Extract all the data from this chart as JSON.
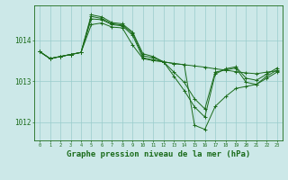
{
  "background_color": "#cce8e8",
  "grid_color": "#99cccc",
  "line_color": "#1a6b1a",
  "marker_color": "#1a6b1a",
  "xlabel": "Graphe pression niveau de la mer (hPa)",
  "xlabel_fontsize": 6.5,
  "ylim": [
    1011.55,
    1014.85
  ],
  "xlim": [
    -0.5,
    23.5
  ],
  "yticks": [
    1012,
    1013,
    1014
  ],
  "xticks": [
    0,
    1,
    2,
    3,
    4,
    5,
    6,
    7,
    8,
    9,
    10,
    11,
    12,
    13,
    14,
    15,
    16,
    17,
    18,
    19,
    20,
    21,
    22,
    23
  ],
  "series": [
    [
      1013.72,
      1013.55,
      1013.6,
      1013.65,
      1013.7,
      1014.38,
      1014.42,
      1014.32,
      1014.3,
      1013.88,
      1013.55,
      1013.5,
      1013.47,
      1013.43,
      1013.4,
      1013.37,
      1013.34,
      1013.3,
      1013.27,
      1013.23,
      1013.2,
      1013.18,
      1013.22,
      1013.25
    ],
    [
      1013.72,
      1013.55,
      1013.6,
      1013.65,
      1013.7,
      1014.52,
      1014.5,
      1014.38,
      1014.35,
      1014.12,
      1013.57,
      1013.52,
      1013.47,
      1013.43,
      1013.4,
      1011.92,
      1011.82,
      1012.38,
      1012.62,
      1012.82,
      1012.87,
      1012.92,
      1013.07,
      1013.22
    ],
    [
      1013.72,
      1013.55,
      1013.6,
      1013.65,
      1013.7,
      1014.58,
      1014.53,
      1014.4,
      1014.37,
      1014.17,
      1013.62,
      1013.57,
      1013.47,
      1013.22,
      1012.97,
      1012.57,
      1012.32,
      1013.22,
      1013.27,
      1013.32,
      1012.97,
      1012.92,
      1013.12,
      1013.27
    ],
    [
      1013.72,
      1013.55,
      1013.6,
      1013.65,
      1013.7,
      1014.62,
      1014.57,
      1014.43,
      1014.4,
      1014.2,
      1013.67,
      1013.6,
      1013.47,
      1013.12,
      1012.77,
      1012.37,
      1012.12,
      1013.17,
      1013.3,
      1013.35,
      1013.07,
      1013.02,
      1013.17,
      1013.32
    ]
  ]
}
